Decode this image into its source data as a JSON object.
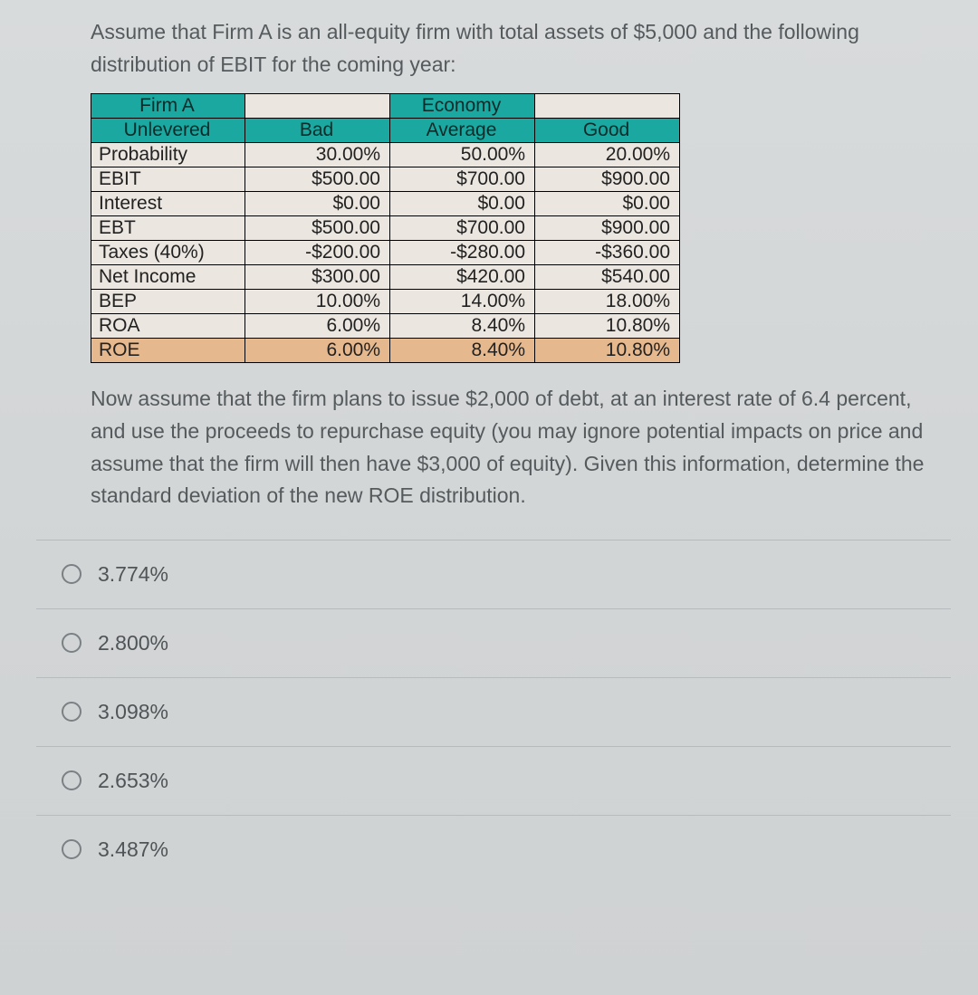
{
  "intro": "Assume that Firm A is an all-equity firm with total assets of $5,000 and the following distribution of EBIT for the coming year:",
  "table": {
    "header": {
      "firm_line1": "Firm A",
      "firm_line2": "Unlevered",
      "economy": "Economy",
      "bad": "Bad",
      "average": "Average",
      "good": "Good"
    },
    "rows": [
      {
        "label": "Probability",
        "bad": "30.00%",
        "avg": "50.00%",
        "good": "20.00%"
      },
      {
        "label": "EBIT",
        "bad": "$500.00",
        "avg": "$700.00",
        "good": "$900.00"
      },
      {
        "label": "Interest",
        "bad": "$0.00",
        "avg": "$0.00",
        "good": "$0.00"
      },
      {
        "label": "EBT",
        "bad": "$500.00",
        "avg": "$700.00",
        "good": "$900.00"
      },
      {
        "label": "Taxes (40%)",
        "bad": "-$200.00",
        "avg": "-$280.00",
        "good": "-$360.00"
      },
      {
        "label": "Net Income",
        "bad": "$300.00",
        "avg": "$420.00",
        "good": "$540.00"
      },
      {
        "label": "BEP",
        "bad": "10.00%",
        "avg": "14.00%",
        "good": "18.00%"
      },
      {
        "label": "ROA",
        "bad": "6.00%",
        "avg": "8.40%",
        "good": "10.80%"
      },
      {
        "label": "ROE",
        "bad": "6.00%",
        "avg": "8.40%",
        "good": "10.80%"
      }
    ],
    "roe_highlight_index": 8,
    "colors": {
      "header_bg": "#1aa8a0",
      "body_bg": "#ebe6df",
      "roe_bg": "#e6b88e",
      "border": "#000000"
    }
  },
  "question": "Now assume that the firm plans to issue $2,000 of debt, at an interest rate of 6.4 percent, and use the proceeds to repurchase equity (you may ignore potential impacts on price and assume that the firm will then have $3,000 of equity). Given this information, determine the standard deviation of the new ROE distribution.",
  "options": [
    "3.774%",
    "2.800%",
    "3.098%",
    "2.653%",
    "3.487%"
  ]
}
